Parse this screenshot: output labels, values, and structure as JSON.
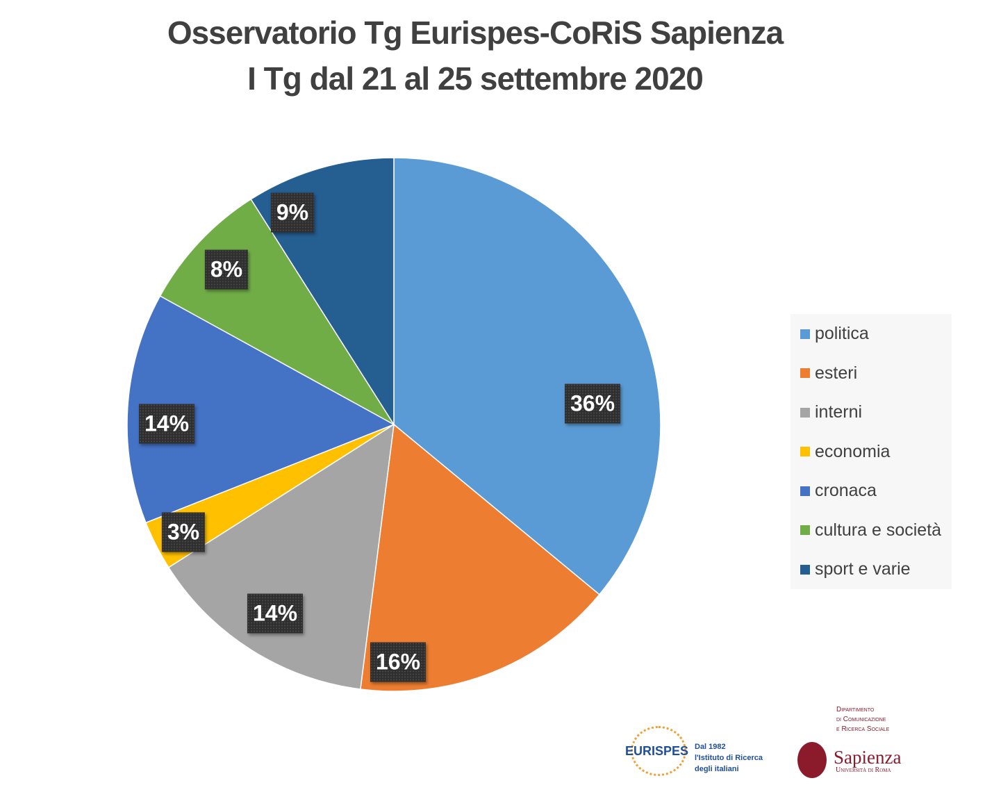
{
  "chart_data": {
    "type": "pie",
    "title": [
      "Osservatorio Tg Eurispes-CoRiS Sapienza",
      "I Tg dal 21 al 25 settembre 2020"
    ],
    "categories": [
      "politica",
      "esteri",
      "interni",
      "economia",
      "cronaca",
      "cultura e società",
      "sport e varie"
    ],
    "values": [
      36,
      16,
      14,
      3,
      14,
      8,
      9
    ],
    "data_labels": [
      "36%",
      "16%",
      "14%",
      "3%",
      "14%",
      "8%",
      "9%"
    ],
    "colors": [
      "#5B9BD5",
      "#ED7D31",
      "#A5A5A5",
      "#FFC000",
      "#4472C4",
      "#70AD47",
      "#255E91"
    ],
    "start": "12 o'clock, clockwise",
    "legend_position": "right"
  },
  "footer": {
    "eurispes": {
      "name": "EURISPES",
      "tagline": [
        "Dal 1982",
        "l'Istituto di Ricerca",
        "degli italiani"
      ]
    },
    "sapienza": {
      "department": [
        "Dipartimento",
        "di Comunicazione",
        "e Ricerca Sociale"
      ],
      "name": "Sapienza",
      "subtitle": "Università di Roma"
    }
  }
}
